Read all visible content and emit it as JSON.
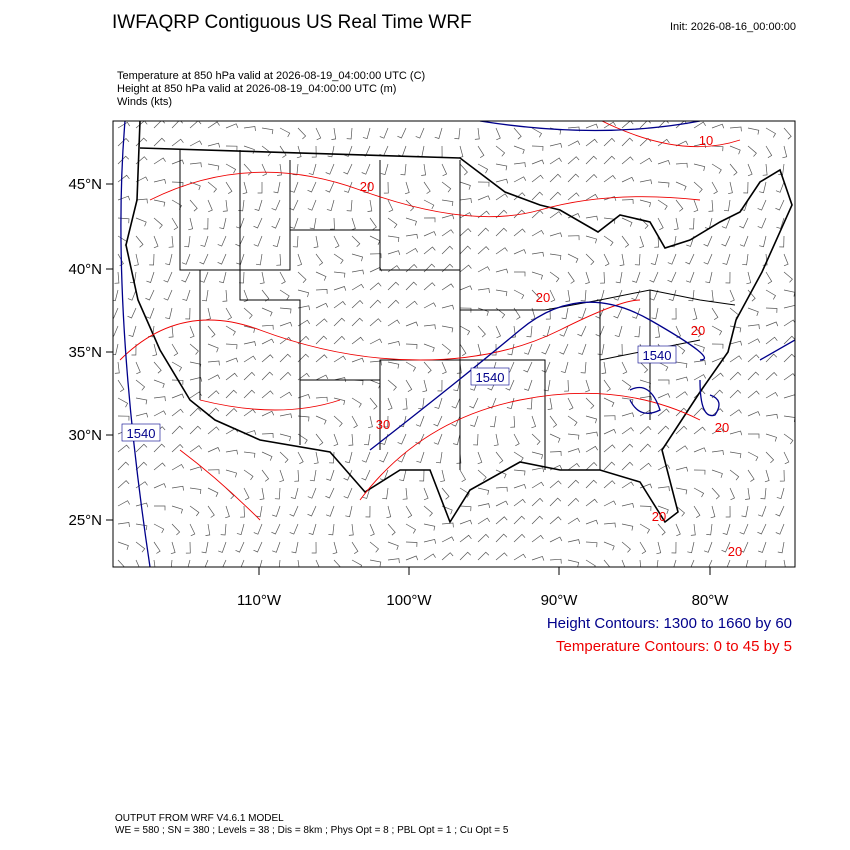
{
  "title": "IWFAQRP Contiguous US Real Time WRF",
  "init": "Init: 2026-08-16_00:00:00",
  "fields": [
    "Temperature at 850 hPa valid at 2026-08-19_04:00:00 UTC   (C)",
    "Height at 850 hPa valid at 2026-08-19_04:00:00 UTC   (m)",
    "Winds   (kts)"
  ],
  "lat_labels": [
    "45°N",
    "40°N",
    "35°N",
    "30°N",
    "25°N"
  ],
  "lon_labels": [
    "110°W",
    "100°W",
    "90°W",
    "80°W"
  ],
  "height_labels": [
    "1540",
    "1540",
    "1540"
  ],
  "temperature_labels": [
    "20",
    "20",
    "30",
    "10",
    "20",
    "20",
    "20",
    "20"
  ],
  "contour_legend": [
    "Height Contours: 1300 to 1660 by 60",
    "Temperature Contours: 0 to 45 by 5"
  ],
  "footer": [
    "OUTPUT FROM WRF V4.6.1 MODEL",
    "WE = 580 ; SN = 380 ; Levels = 38 ; Dis = 8km ; Phys Opt = 8 ; PBL Opt = 1 ; Cu Opt = 5"
  ]
}
